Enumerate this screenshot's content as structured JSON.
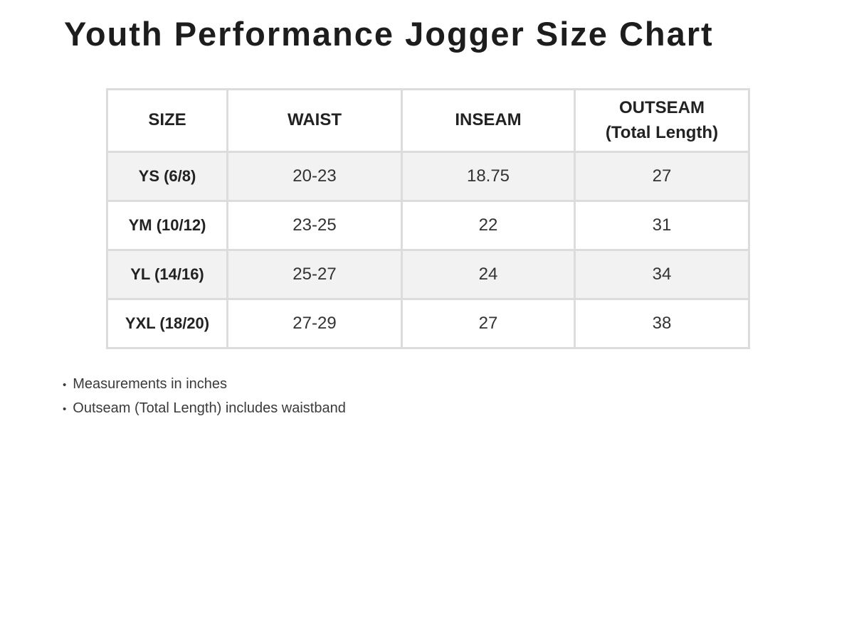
{
  "title": "Youth Performance Jogger Size Chart",
  "chart_data": {
    "type": "table",
    "title": "Youth Performance Jogger Size Chart",
    "columns": [
      "SIZE",
      "WAIST",
      "INSEAM",
      "OUTSEAM\n(Total Length)"
    ],
    "rows": [
      [
        "YS (6/8)",
        "20-23",
        "18.75",
        "27"
      ],
      [
        "YM (10/12)",
        "23-25",
        "22",
        "31"
      ],
      [
        "YL (14/16)",
        "25-27",
        "24",
        "34"
      ],
      [
        "YXL (18/20)",
        "27-29",
        "27",
        "38"
      ]
    ],
    "units": "inches",
    "layout": {
      "zebra_striping": true,
      "striped_row_color": "#f2f2f2",
      "border_color": "#dcdcdc",
      "header_background": "#ffffff"
    }
  },
  "notes": {
    "bullet": "•",
    "items": [
      "Measurements in inches",
      "Outseam (Total Length) includes waistband"
    ]
  },
  "colors": {
    "title_text": "#1d1d1d",
    "header_text": "#222222",
    "body_text": "#333333",
    "note_text": "#3a3a3a",
    "border": "#dcdcdc",
    "row_alt": "#f2f2f2",
    "background": "#ffffff"
  }
}
